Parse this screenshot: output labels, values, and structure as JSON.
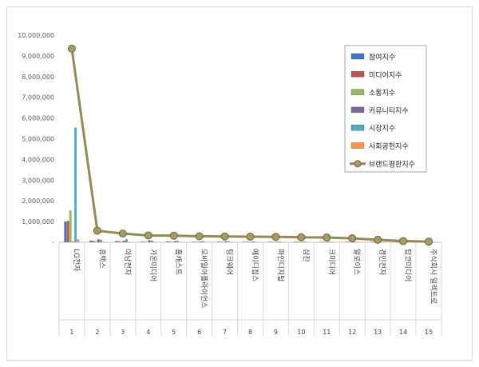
{
  "chart_data": {
    "type": "bar",
    "title": "",
    "xlabel": "",
    "ylabel": "",
    "ylim": [
      0,
      10000000
    ],
    "yticks": [
      "-",
      "1,000,000",
      "2,000,000",
      "3,000,000",
      "4,000,000",
      "5,000,000",
      "6,000,000",
      "7,000,000",
      "8,000,000",
      "9,000,000",
      "10,000,000"
    ],
    "grid": false,
    "legend_position": "top-right",
    "categories": [
      "LG전자",
      "휴맥스",
      "아남전자",
      "가온미디어",
      "홈캐스트",
      "모바일어플라이언스",
      "팅크웨어",
      "에이디칩스",
      "파인디지털",
      "삼진",
      "크미디어",
      "알로이스",
      "경인전자",
      "탑코미디어",
      "주식회사 일렉트로"
    ],
    "ranks": [
      "1",
      "2",
      "3",
      "4",
      "5",
      "6",
      "7",
      "8",
      "9",
      "10",
      "11",
      "12",
      "13",
      "14",
      "15"
    ],
    "series": [
      {
        "name": "참여지수",
        "color": "#4472c4",
        "kind": "bar",
        "values": [
          1000000,
          80000,
          60000,
          30000,
          40000,
          25000,
          30000,
          20000,
          20000,
          15000,
          15000,
          12000,
          10000,
          8000,
          5000
        ]
      },
      {
        "name": "미디어지수",
        "color": "#c0504d",
        "kind": "bar",
        "values": [
          1030000,
          60000,
          50000,
          25000,
          30000,
          20000,
          25000,
          18000,
          15000,
          12000,
          12000,
          10000,
          8000,
          6000,
          4000
        ]
      },
      {
        "name": "소통지수",
        "color": "#9bbb59",
        "kind": "bar",
        "values": [
          1540000,
          50000,
          40000,
          20000,
          25000,
          15000,
          20000,
          15000,
          12000,
          10000,
          10000,
          8000,
          6000,
          5000,
          3000
        ]
      },
      {
        "name": "커뮤니티지수",
        "color": "#8064a2",
        "kind": "bar",
        "values": [
          30000,
          150000,
          80000,
          100000,
          60000,
          40000,
          50000,
          30000,
          25000,
          20000,
          20000,
          15000,
          12000,
          10000,
          8000
        ]
      },
      {
        "name": "시장지수",
        "color": "#4bacc6",
        "kind": "bar",
        "values": [
          5540000,
          120000,
          150000,
          80000,
          70000,
          60000,
          50000,
          40000,
          35000,
          30000,
          25000,
          20000,
          15000,
          10000,
          8000
        ]
      },
      {
        "name": "사회공헌지수",
        "color": "#f79646",
        "kind": "bar",
        "values": [
          150000,
          20000,
          15000,
          10000,
          10000,
          8000,
          8000,
          6000,
          5000,
          5000,
          4000,
          4000,
          3000,
          3000,
          2000
        ]
      },
      {
        "name": "브랜드평판지수",
        "color": "#948a54",
        "kind": "line",
        "values": [
          9350000,
          560000,
          420000,
          330000,
          320000,
          290000,
          280000,
          270000,
          260000,
          240000,
          230000,
          190000,
          120000,
          60000,
          30000
        ]
      }
    ]
  }
}
